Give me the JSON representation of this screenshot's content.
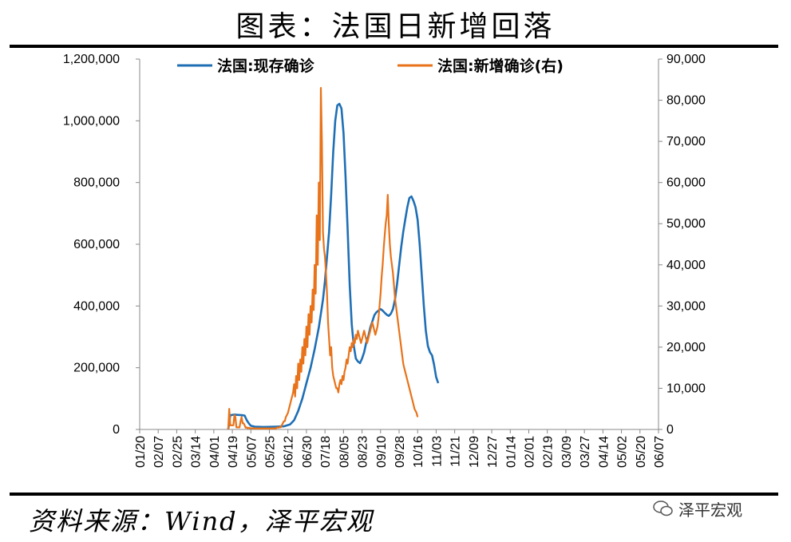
{
  "title": "图表：法国日新增回落",
  "source": "资料来源：Wind，泽平宏观",
  "watermark": "泽平宏观",
  "chart_data": {
    "type": "line",
    "x_ticks": [
      "01/20",
      "02/07",
      "02/25",
      "03/14",
      "04/01",
      "04/19",
      "05/07",
      "05/25",
      "06/12",
      "06/30",
      "07/18",
      "08/05",
      "08/23",
      "09/10",
      "09/28",
      "10/16",
      "11/03",
      "11/21",
      "12/09",
      "12/27",
      "01/14",
      "02/01",
      "02/19",
      "03/09",
      "03/27",
      "04/14",
      "05/02",
      "05/20",
      "06/07"
    ],
    "y_left": {
      "min": 0,
      "max": 1200000,
      "ticks": [
        "0",
        "200,000",
        "400,000",
        "600,000",
        "800,000",
        "1,000,000",
        "1,200,000"
      ]
    },
    "y_right": {
      "min": 0,
      "max": 90000,
      "ticks": [
        "0",
        "10,000",
        "20,000",
        "30,000",
        "40,000",
        "50,000",
        "60,000",
        "70,000",
        "80,000",
        "90,000"
      ]
    },
    "series": [
      {
        "name": "法国:现存确诊",
        "color": "#1f6fb5",
        "axis": "left",
        "points": [
          [
            86,
            0
          ],
          [
            88,
            46000
          ],
          [
            92,
            48000
          ],
          [
            96,
            47000
          ],
          [
            100,
            46000
          ],
          [
            102,
            45000
          ],
          [
            104,
            30000
          ],
          [
            106,
            20000
          ],
          [
            108,
            12000
          ],
          [
            112,
            9000
          ],
          [
            120,
            8000
          ],
          [
            132,
            9000
          ],
          [
            140,
            10000
          ],
          [
            146,
            16000
          ],
          [
            150,
            30000
          ],
          [
            154,
            60000
          ],
          [
            158,
            100000
          ],
          [
            162,
            150000
          ],
          [
            166,
            200000
          ],
          [
            170,
            260000
          ],
          [
            174,
            330000
          ],
          [
            178,
            420000
          ],
          [
            180,
            480000
          ],
          [
            182,
            560000
          ],
          [
            184,
            640000
          ],
          [
            186,
            760000
          ],
          [
            188,
            900000
          ],
          [
            190,
            1000000
          ],
          [
            192,
            1050000
          ],
          [
            194,
            1055000
          ],
          [
            196,
            1040000
          ],
          [
            198,
            960000
          ],
          [
            200,
            820000
          ],
          [
            202,
            650000
          ],
          [
            204,
            470000
          ],
          [
            206,
            340000
          ],
          [
            208,
            270000
          ],
          [
            210,
            230000
          ],
          [
            212,
            220000
          ],
          [
            214,
            215000
          ],
          [
            216,
            230000
          ],
          [
            218,
            250000
          ],
          [
            220,
            280000
          ],
          [
            222,
            300000
          ],
          [
            224,
            330000
          ],
          [
            226,
            350000
          ],
          [
            228,
            370000
          ],
          [
            230,
            380000
          ],
          [
            232,
            385000
          ],
          [
            234,
            390000
          ],
          [
            236,
            385000
          ],
          [
            238,
            378000
          ],
          [
            240,
            372000
          ],
          [
            242,
            368000
          ],
          [
            244,
            375000
          ],
          [
            246,
            390000
          ],
          [
            248,
            420000
          ],
          [
            250,
            470000
          ],
          [
            252,
            530000
          ],
          [
            254,
            590000
          ],
          [
            256,
            640000
          ],
          [
            258,
            680000
          ],
          [
            260,
            720000
          ],
          [
            262,
            750000
          ],
          [
            264,
            755000
          ],
          [
            266,
            740000
          ],
          [
            268,
            720000
          ],
          [
            270,
            680000
          ],
          [
            272,
            600000
          ],
          [
            274,
            500000
          ],
          [
            276,
            400000
          ],
          [
            278,
            320000
          ],
          [
            280,
            270000
          ],
          [
            282,
            250000
          ],
          [
            284,
            240000
          ],
          [
            286,
            210000
          ],
          [
            288,
            170000
          ],
          [
            290,
            150000
          ]
        ]
      },
      {
        "name": "法国:新增确诊(右)",
        "color": "#e8731a",
        "axis": "right",
        "points": [
          [
            86,
            0
          ],
          [
            87,
            5000
          ],
          [
            88,
            1000
          ],
          [
            89,
            1000
          ],
          [
            90,
            1000
          ],
          [
            91,
            1000
          ],
          [
            92,
            3500
          ],
          [
            93,
            3000
          ],
          [
            94,
            500
          ],
          [
            95,
            500
          ],
          [
            96,
            500
          ],
          [
            97,
            500
          ],
          [
            98,
            2000
          ],
          [
            99,
            3000
          ],
          [
            100,
            1500
          ],
          [
            101,
            1500
          ],
          [
            102,
            1000
          ],
          [
            103,
            400
          ],
          [
            104,
            500
          ],
          [
            105,
            300
          ],
          [
            106,
            400
          ],
          [
            107,
            300
          ],
          [
            108,
            300
          ],
          [
            109,
            300
          ],
          [
            110,
            300
          ],
          [
            111,
            300
          ],
          [
            112,
            200
          ],
          [
            113,
            300
          ],
          [
            114,
            200
          ],
          [
            115,
            300
          ],
          [
            116,
            200
          ],
          [
            117,
            300
          ],
          [
            118,
            200
          ],
          [
            119,
            300
          ],
          [
            120,
            200
          ],
          [
            121,
            300
          ],
          [
            122,
            200
          ],
          [
            123,
            300
          ],
          [
            124,
            200
          ],
          [
            125,
            300
          ],
          [
            126,
            200
          ],
          [
            127,
            300
          ],
          [
            128,
            200
          ],
          [
            129,
            300
          ],
          [
            130,
            200
          ],
          [
            131,
            300
          ],
          [
            132,
            200
          ],
          [
            133,
            400
          ],
          [
            134,
            500
          ],
          [
            135,
            400
          ],
          [
            136,
            600
          ],
          [
            137,
            500
          ],
          [
            138,
            1000
          ],
          [
            139,
            1500
          ],
          [
            140,
            2000
          ],
          [
            141,
            2000
          ],
          [
            142,
            3000
          ],
          [
            143,
            3500
          ],
          [
            144,
            4000
          ],
          [
            145,
            5000
          ],
          [
            146,
            6000
          ],
          [
            147,
            7000
          ],
          [
            148,
            8000
          ],
          [
            149,
            9000
          ],
          [
            150,
            11000
          ],
          [
            151,
            8000
          ],
          [
            152,
            13000
          ],
          [
            153,
            10000
          ],
          [
            154,
            16000
          ],
          [
            155,
            12000
          ],
          [
            156,
            17000
          ],
          [
            157,
            14000
          ],
          [
            158,
            20000
          ],
          [
            159,
            16000
          ],
          [
            160,
            22000
          ],
          [
            161,
            18000
          ],
          [
            162,
            25000
          ],
          [
            163,
            20000
          ],
          [
            164,
            28000
          ],
          [
            165,
            23000
          ],
          [
            166,
            30000
          ],
          [
            167,
            26000
          ],
          [
            168,
            34000
          ],
          [
            169,
            29000
          ],
          [
            170,
            40000
          ],
          [
            171,
            33000
          ],
          [
            172,
            52000
          ],
          [
            173,
            40000
          ],
          [
            174,
            60000
          ],
          [
            175,
            46000
          ],
          [
            176,
            83000
          ],
          [
            177,
            70000
          ],
          [
            178,
            48000
          ],
          [
            179,
            44000
          ],
          [
            180,
            42000
          ],
          [
            181,
            38000
          ],
          [
            182,
            33000
          ],
          [
            183,
            26000
          ],
          [
            184,
            22000
          ],
          [
            185,
            18000
          ],
          [
            186,
            20000
          ],
          [
            187,
            15000
          ],
          [
            188,
            13000
          ],
          [
            189,
            12000
          ],
          [
            190,
            11000
          ],
          [
            191,
            10000
          ],
          [
            192,
            10000
          ],
          [
            193,
            9000
          ],
          [
            194,
            11000
          ],
          [
            195,
            12000
          ],
          [
            196,
            11000
          ],
          [
            197,
            13000
          ],
          [
            198,
            12000
          ],
          [
            199,
            14000
          ],
          [
            200,
            15000
          ],
          [
            201,
            17000
          ],
          [
            202,
            16000
          ],
          [
            203,
            18000
          ],
          [
            204,
            20000
          ],
          [
            205,
            19000
          ],
          [
            206,
            21000
          ],
          [
            207,
            20000
          ],
          [
            208,
            22000
          ],
          [
            209,
            21000
          ],
          [
            210,
            23000
          ],
          [
            211,
            22000
          ],
          [
            212,
            24000
          ],
          [
            213,
            23000
          ],
          [
            214,
            22000
          ],
          [
            215,
            21000
          ],
          [
            216,
            22000
          ],
          [
            217,
            23000
          ],
          [
            218,
            24000
          ],
          [
            219,
            23000
          ],
          [
            220,
            22000
          ],
          [
            221,
            21000
          ],
          [
            222,
            22000
          ],
          [
            223,
            23000
          ],
          [
            224,
            24000
          ],
          [
            225,
            25000
          ],
          [
            226,
            26000
          ],
          [
            227,
            25000
          ],
          [
            228,
            24000
          ],
          [
            229,
            23000
          ],
          [
            230,
            24000
          ],
          [
            231,
            25000
          ],
          [
            232,
            27000
          ],
          [
            233,
            30000
          ],
          [
            234,
            33000
          ],
          [
            235,
            37000
          ],
          [
            236,
            40000
          ],
          [
            237,
            44000
          ],
          [
            238,
            47000
          ],
          [
            239,
            50000
          ],
          [
            240,
            52000
          ],
          [
            241,
            57000
          ],
          [
            242,
            50000
          ],
          [
            243,
            45000
          ],
          [
            244,
            42000
          ],
          [
            245,
            40000
          ],
          [
            246,
            38000
          ],
          [
            247,
            35000
          ],
          [
            248,
            32000
          ],
          [
            249,
            30000
          ],
          [
            250,
            28000
          ],
          [
            251,
            26000
          ],
          [
            252,
            24000
          ],
          [
            253,
            22000
          ],
          [
            254,
            20000
          ],
          [
            255,
            18000
          ],
          [
            256,
            16000
          ],
          [
            257,
            15000
          ],
          [
            258,
            14000
          ],
          [
            259,
            13000
          ],
          [
            260,
            12000
          ],
          [
            261,
            11000
          ],
          [
            262,
            10000
          ],
          [
            263,
            9000
          ],
          [
            264,
            8000
          ],
          [
            265,
            7000
          ],
          [
            266,
            6000
          ],
          [
            267,
            5000
          ],
          [
            268,
            4500
          ],
          [
            269,
            4000
          ],
          [
            270,
            3000
          ]
        ]
      }
    ]
  }
}
